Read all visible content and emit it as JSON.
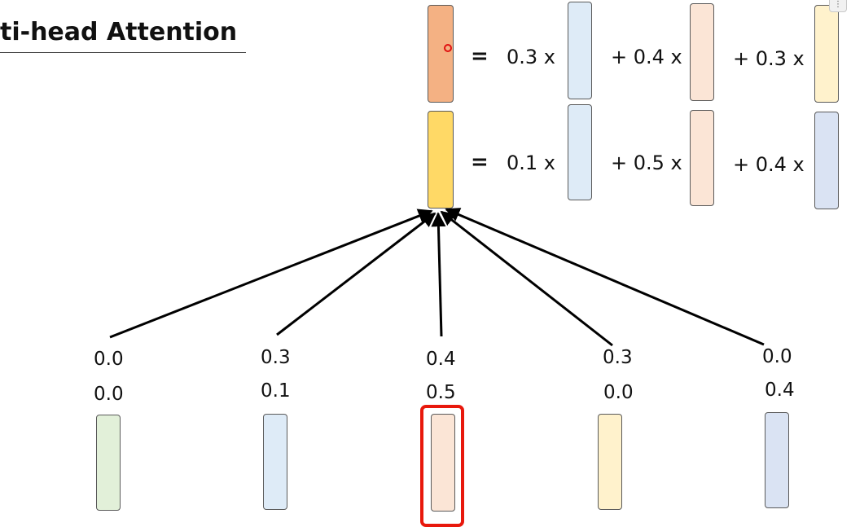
{
  "title": "ti-head Attention",
  "colors": {
    "orange": "#f4b183",
    "yellow": "#ffd966",
    "light_blue": "#deebf7",
    "peach": "#fbe5d6",
    "light_yellow": "#fff2cc",
    "steel_blue": "#dae3f3",
    "light_green": "#e2f0d9",
    "highlight_red": "#e8180c"
  },
  "equations": [
    {
      "equals": "=",
      "terms": [
        "0.3 x",
        "+ 0.4 x",
        "+ 0.3 x"
      ]
    },
    {
      "equals": "=",
      "terms": [
        "0.1 x",
        "+ 0.5 x",
        "+ 0.4 x"
      ]
    }
  ],
  "inputs": [
    {
      "weight_top": "0.0",
      "weight_bottom": "0.0",
      "color": "light_green"
    },
    {
      "weight_top": "0.3",
      "weight_bottom": "0.1",
      "color": "light_blue"
    },
    {
      "weight_top": "0.4",
      "weight_bottom": "0.5",
      "color": "peach",
      "highlighted": true
    },
    {
      "weight_top": "0.3",
      "weight_bottom": "0.0",
      "color": "light_yellow"
    },
    {
      "weight_top": "0.0",
      "weight_bottom": "0.4",
      "color": "steel_blue"
    }
  ]
}
